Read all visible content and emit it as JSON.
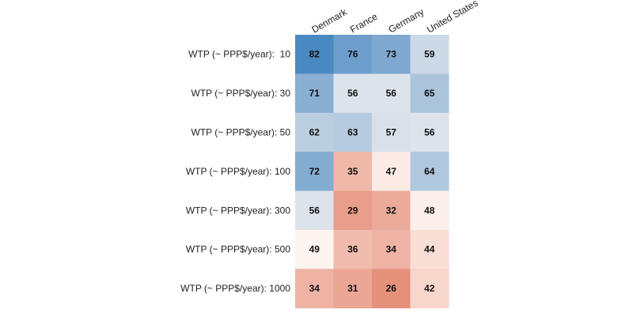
{
  "chart_data": {
    "type": "heatmap",
    "columns": [
      "Denmark",
      "France",
      "Germany",
      "United States"
    ],
    "rows": [
      "WTP (~ PPP$/year):  10",
      "WTP (~ PPP$/year): 30",
      "WTP (~ PPP$/year): 50",
      "WTP (~ PPP$/year): 100",
      "WTP (~ PPP$/year): 300",
      "WTP (~ PPP$/year): 500",
      "WTP (~ PPP$/year): 1000"
    ],
    "values": [
      [
        82,
        76,
        73,
        59
      ],
      [
        71,
        56,
        56,
        65
      ],
      [
        62,
        63,
        57,
        56
      ],
      [
        72,
        35,
        47,
        64
      ],
      [
        56,
        29,
        32,
        48
      ],
      [
        49,
        36,
        34,
        44
      ],
      [
        34,
        31,
        26,
        42
      ]
    ],
    "color_scale": {
      "type": "diverging",
      "low_color": "#e0775e",
      "mid_color": "#fff8f4",
      "high_color": "#3a7fbd",
      "low": 20,
      "mid": 50,
      "high": 85
    },
    "column_label_rotation": "rotated",
    "grid": false,
    "legend": "none"
  }
}
